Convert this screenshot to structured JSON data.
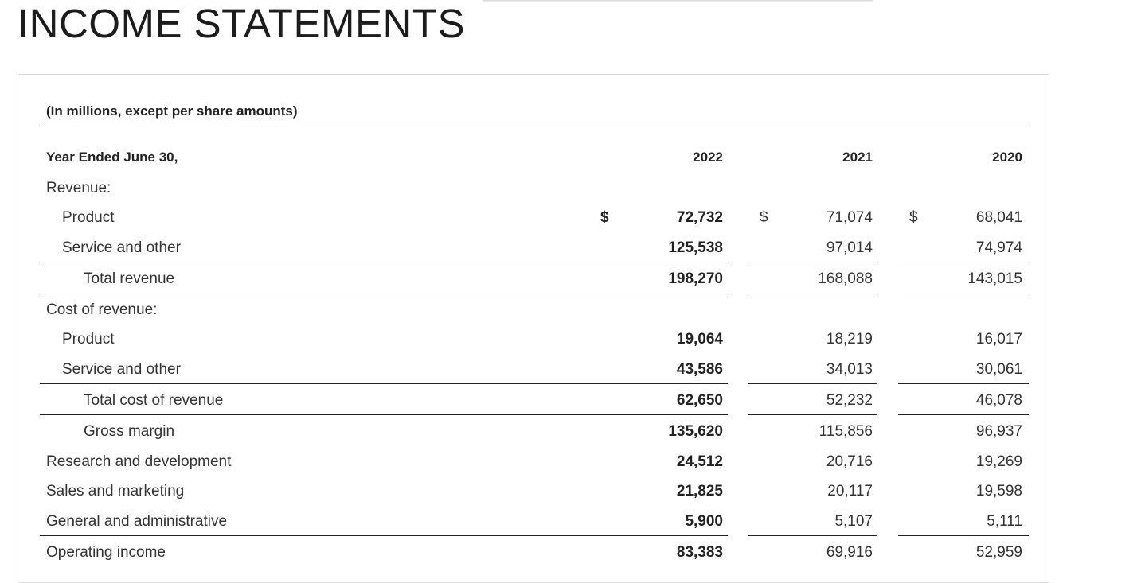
{
  "page_title": "INCOME STATEMENTS",
  "caption": "(In millions, except per share amounts)",
  "header": {
    "label": "Year Ended June 30,",
    "years": [
      "2022",
      "2021",
      "2020"
    ]
  },
  "currency_symbol": "$",
  "rows": {
    "revenue_header": "Revenue:",
    "revenue_product": {
      "label": "Product",
      "values": [
        "72,732",
        "71,074",
        "68,041"
      ]
    },
    "revenue_service": {
      "label": "Service and other",
      "values": [
        "125,538",
        "97,014",
        "74,974"
      ]
    },
    "total_revenue": {
      "label": "Total revenue",
      "values": [
        "198,270",
        "168,088",
        "143,015"
      ]
    },
    "cost_header": "Cost of revenue:",
    "cost_product": {
      "label": "Product",
      "values": [
        "19,064",
        "18,219",
        "16,017"
      ]
    },
    "cost_service": {
      "label": "Service and other",
      "values": [
        "43,586",
        "34,013",
        "30,061"
      ]
    },
    "total_cost": {
      "label": "Total cost of revenue",
      "values": [
        "62,650",
        "52,232",
        "46,078"
      ]
    },
    "gross_margin": {
      "label": "Gross margin",
      "values": [
        "135,620",
        "115,856",
        "96,937"
      ]
    },
    "research": {
      "label": "Research and development",
      "values": [
        "24,512",
        "20,716",
        "19,269"
      ]
    },
    "sales": {
      "label": "Sales and marketing",
      "values": [
        "21,825",
        "20,117",
        "19,598"
      ]
    },
    "general": {
      "label": "General and administrative",
      "values": [
        "5,900",
        "5,107",
        "5,111"
      ]
    },
    "operating_income": {
      "label": "Operating income",
      "values": [
        "83,383",
        "69,916",
        "52,959"
      ]
    }
  }
}
